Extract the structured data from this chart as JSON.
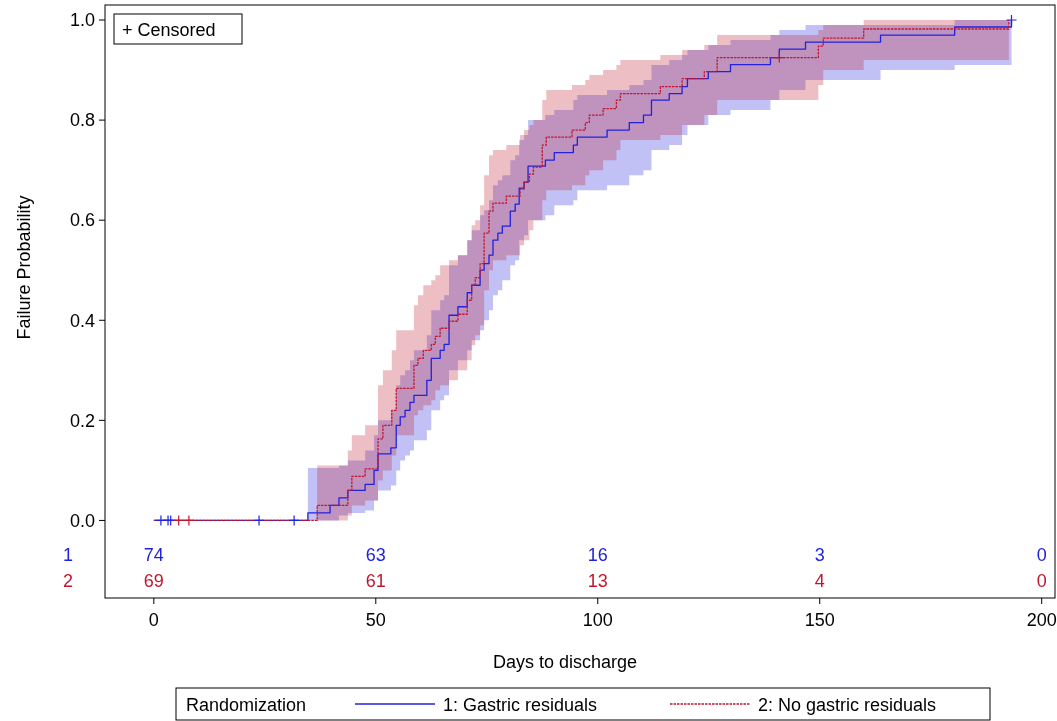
{
  "chart_data": {
    "type": "step",
    "xlabel": "Days to discharge",
    "ylabel": "Failure Probability",
    "legend_title": "Randomization",
    "legend": "bottom",
    "grid": false,
    "xlim": [
      -11,
      203
    ],
    "xticks": [
      0,
      50,
      100,
      150,
      200
    ],
    "ylim": [
      -0.155,
      1.03
    ],
    "yticks": [
      {
        "value": 0,
        "label": "0.0"
      },
      {
        "value": 0.2,
        "label": "0.2"
      },
      {
        "value": 0.4,
        "label": "0.4"
      },
      {
        "value": 0.6,
        "label": "0.6"
      },
      {
        "value": 0.8,
        "label": "0.8"
      },
      {
        "value": 1,
        "label": "1.0"
      }
    ],
    "annotations": [
      "+ Censored",
      "1",
      "74",
      "63",
      "16",
      "3",
      "0",
      "2",
      "69",
      "61",
      "13",
      "4",
      "0"
    ],
    "series": [
      {
        "name": "1: Gastric residuals",
        "color": "#2222dd",
        "line_style": "solid",
        "x": [
          0,
          34.7,
          39.7,
          41.7,
          43.7,
          47.6,
          49.6,
          50.5,
          53.4,
          54.6,
          55.5,
          56.6,
          57.7,
          58.6,
          61.5,
          62.5,
          64.5,
          65.4,
          66.5,
          68.5,
          70.6,
          71.6,
          73.5,
          74.4,
          75.5,
          76.4,
          77.5,
          78.5,
          80.3,
          81.4,
          82.3,
          83.4,
          84.3,
          88.2,
          90.2,
          94.5,
          95.4,
          102.1,
          107.1,
          110.3,
          112.1,
          116.1,
          119,
          120.2,
          124.9,
          129.9,
          138.9,
          140.9,
          146.8,
          163.7,
          180.4,
          193.2
        ],
        "values": [
          0,
          0.015,
          0.03,
          0.045,
          0.06,
          0.072,
          0.1,
          0.133,
          0.145,
          0.19,
          0.207,
          0.22,
          0.236,
          0.25,
          0.28,
          0.324,
          0.34,
          0.352,
          0.41,
          0.427,
          0.455,
          0.47,
          0.5,
          0.513,
          0.53,
          0.56,
          0.574,
          0.588,
          0.618,
          0.632,
          0.664,
          0.676,
          0.708,
          0.72,
          0.735,
          0.75,
          0.766,
          0.78,
          0.795,
          0.81,
          0.84,
          0.853,
          0.867,
          0.883,
          0.897,
          0.911,
          0.925,
          0.942,
          0.956,
          0.97,
          0.986,
          1
        ],
        "lower": [
          0,
          0,
          0,
          0.01,
          0.015,
          0.02,
          0.04,
          0.06,
          0.07,
          0.1,
          0.12,
          0.13,
          0.14,
          0.16,
          0.18,
          0.22,
          0.24,
          0.25,
          0.3,
          0.32,
          0.34,
          0.36,
          0.38,
          0.4,
          0.42,
          0.45,
          0.46,
          0.48,
          0.51,
          0.52,
          0.56,
          0.57,
          0.6,
          0.61,
          0.63,
          0.64,
          0.66,
          0.67,
          0.69,
          0.7,
          0.74,
          0.75,
          0.77,
          0.79,
          0.81,
          0.82,
          0.84,
          0.86,
          0.88,
          0.9,
          0.91,
          0.92
        ],
        "upper": [
          0,
          0.105,
          0.105,
          0.11,
          0.12,
          0.14,
          0.17,
          0.2,
          0.22,
          0.27,
          0.29,
          0.3,
          0.32,
          0.34,
          0.37,
          0.42,
          0.44,
          0.45,
          0.51,
          0.53,
          0.56,
          0.58,
          0.61,
          0.62,
          0.64,
          0.67,
          0.68,
          0.69,
          0.72,
          0.73,
          0.76,
          0.77,
          0.8,
          0.81,
          0.82,
          0.84,
          0.85,
          0.86,
          0.87,
          0.88,
          0.91,
          0.92,
          0.93,
          0.94,
          0.95,
          0.96,
          0.97,
          0.98,
          0.99,
          0.99,
          1,
          1
        ]
      },
      {
        "name": "2: No gastric residuals",
        "color": "#c01830",
        "line_style": "dotted",
        "x": [
          0,
          36.8,
          43.7,
          44.6,
          47.6,
          50.5,
          51.6,
          53.6,
          54.6,
          58.6,
          59.5,
          60.7,
          62.5,
          63.4,
          64.5,
          66.5,
          68.5,
          70.6,
          71.6,
          72.4,
          73.5,
          74.4,
          75.5,
          76.4,
          79.4,
          82.5,
          83.4,
          84.6,
          85.5,
          87.5,
          88.4,
          94.2,
          97.2,
          98.1,
          101.2,
          104.2,
          105.1,
          114.1,
          119,
          124,
          126.9,
          149.7,
          150.8,
          159.9,
          192.6
        ],
        "values": [
          0,
          0.03,
          0.06,
          0.088,
          0.103,
          0.163,
          0.19,
          0.22,
          0.264,
          0.31,
          0.324,
          0.34,
          0.352,
          0.368,
          0.384,
          0.398,
          0.412,
          0.44,
          0.47,
          0.485,
          0.513,
          0.574,
          0.618,
          0.634,
          0.648,
          0.662,
          0.676,
          0.692,
          0.706,
          0.75,
          0.766,
          0.78,
          0.795,
          0.81,
          0.823,
          0.84,
          0.853,
          0.867,
          0.883,
          0.897,
          0.925,
          0.948,
          0.964,
          0.982,
          1
        ],
        "lower": [
          0,
          0,
          0.01,
          0.03,
          0.04,
          0.08,
          0.1,
          0.13,
          0.17,
          0.21,
          0.22,
          0.23,
          0.24,
          0.26,
          0.27,
          0.28,
          0.3,
          0.32,
          0.35,
          0.37,
          0.39,
          0.46,
          0.5,
          0.52,
          0.53,
          0.55,
          0.56,
          0.58,
          0.6,
          0.64,
          0.66,
          0.67,
          0.69,
          0.7,
          0.72,
          0.74,
          0.76,
          0.77,
          0.79,
          0.81,
          0.84,
          0.87,
          0.9,
          0.92,
          0.92
        ],
        "upper": [
          0,
          0.11,
          0.14,
          0.17,
          0.19,
          0.27,
          0.3,
          0.34,
          0.38,
          0.43,
          0.45,
          0.47,
          0.48,
          0.49,
          0.51,
          0.52,
          0.53,
          0.56,
          0.59,
          0.6,
          0.63,
          0.69,
          0.73,
          0.74,
          0.75,
          0.77,
          0.78,
          0.79,
          0.8,
          0.84,
          0.86,
          0.87,
          0.88,
          0.89,
          0.9,
          0.91,
          0.92,
          0.93,
          0.94,
          0.95,
          0.97,
          0.98,
          0.99,
          1,
          1
        ]
      },
      {
        "type": "scatter",
        "marker": "cross",
        "color": "#2222dd",
        "x": [
          1.6,
          3.2,
          3.8,
          23.7,
          31.6,
          193.2
        ],
        "values": [
          0,
          0,
          0,
          0,
          0,
          1
        ]
      },
      {
        "type": "scatter",
        "marker": "cross",
        "color": "#c01830",
        "x": [
          5.6,
          7.9,
          140.9
        ],
        "values": [
          0,
          0,
          0.925
        ]
      }
    ]
  }
}
